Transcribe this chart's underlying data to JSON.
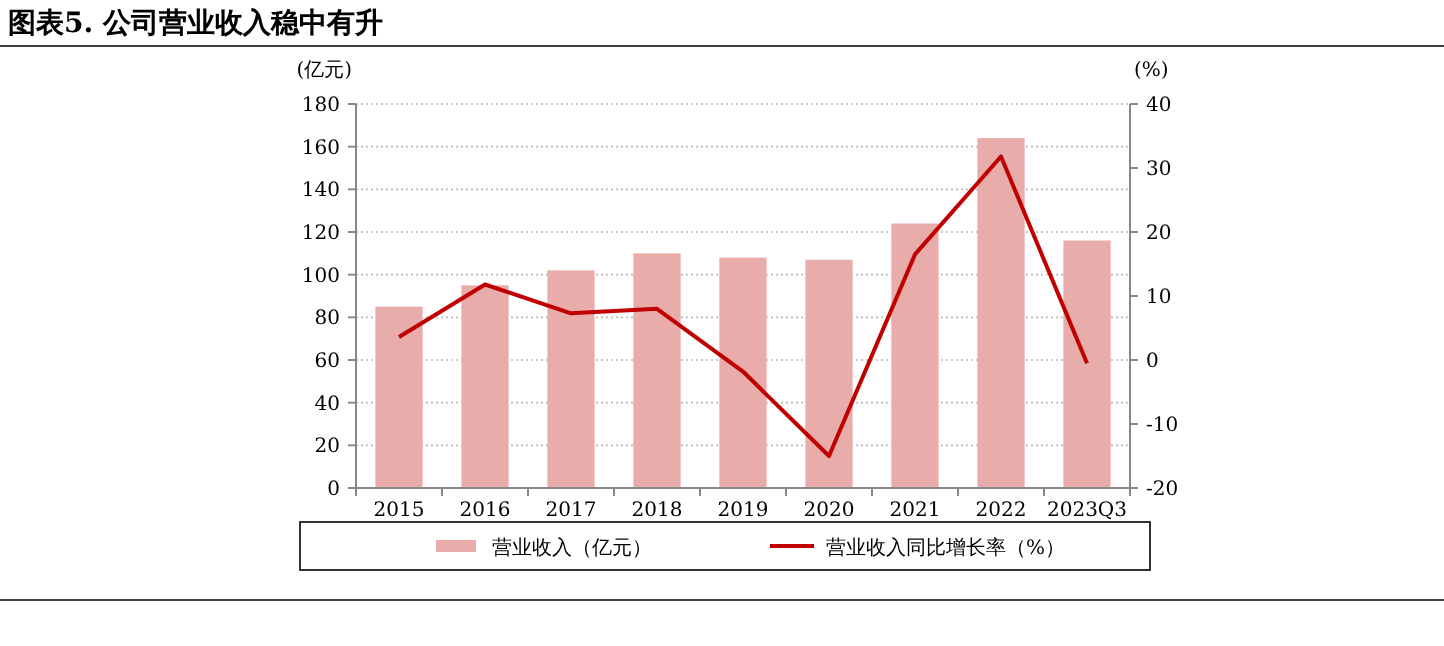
{
  "chart_data": {
    "type": "bar",
    "title": "图表5. 公司营业收入稳中有升",
    "ylabel": "(亿元)",
    "y2label": "(%)",
    "categories": [
      "2015",
      "2016",
      "2017",
      "2018",
      "2019",
      "2020",
      "2021",
      "2022",
      "2023Q3"
    ],
    "series": [
      {
        "name": "营业收入（亿元）",
        "color": "#e8adab",
        "values": [
          85,
          95,
          102,
          110,
          108,
          107,
          124,
          164,
          116
        ]
      },
      {
        "name": "营业收入同比增长率（%）",
        "type": "line",
        "axis": "y2",
        "color": "#c00000",
        "values": [
          3.6,
          11.8,
          7.3,
          8.0,
          -1.8,
          -15.0,
          16.5,
          31.8,
          -0.5
        ]
      }
    ],
    "ylim": [
      0,
      180
    ],
    "yticks": [
      0,
      20,
      40,
      60,
      80,
      100,
      120,
      140,
      160,
      180
    ],
    "y2lim": [
      -20,
      40
    ],
    "y2ticks": [
      -20,
      -10,
      0,
      10,
      20,
      30,
      40
    ],
    "grid": "y",
    "legend": "bottom",
    "marker": "none",
    "line_style": "solid"
  }
}
